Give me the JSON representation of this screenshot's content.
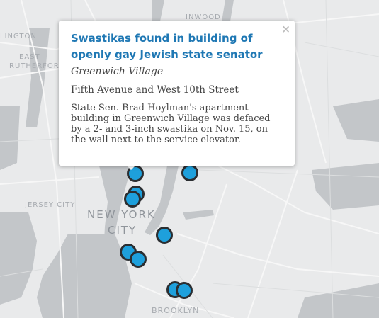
{
  "map": {
    "labels": {
      "inwood": "INWOOD",
      "arlington": "LINGTON",
      "east_rutherford_1": "EAST",
      "east_rutherford_2": "RUTHERFORD",
      "jersey_city": "JERSEY CITY",
      "new_york_city_1": "NEW YORK",
      "new_york_city_2": "CITY",
      "brooklyn": "BROOKLYN"
    },
    "colors": {
      "land": "#e9eaeb",
      "water": "#c3c6c9",
      "marker_fill": "#1ea0dc",
      "marker_outline": "#2b2e31",
      "title": "#1f78b4"
    },
    "markers_count_visible": 11
  },
  "popup": {
    "close_glyph": "×",
    "title": "Swastikas found in building of openly gay Jewish state senator",
    "neighborhood": "Greenwich Village",
    "address": "Fifth Avenue and West 10th Street",
    "description": "State Sen. Brad Hoylman's apartment building in Greenwich Village was defaced by a 2- and 3-inch swastika on Nov. 15, on the wall next to the service elevator."
  }
}
